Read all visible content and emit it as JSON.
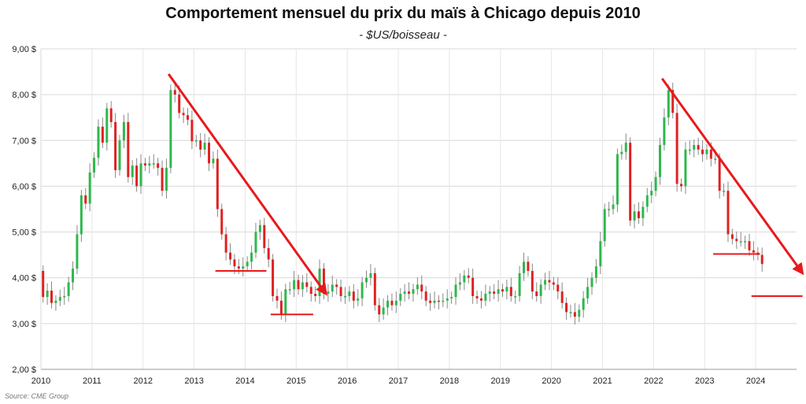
{
  "chart_data": {
    "type": "candlestick",
    "title": "Comportement mensuel du prix du maïs à Chicago depuis 2010",
    "subtitle": "- $US/boisseau -",
    "source": "Source: CME Group",
    "ylim": [
      2.0,
      9.0
    ],
    "y_ticks": [
      "2,00 $",
      "3,00 $",
      "4,00 $",
      "5,00 $",
      "6,00 $",
      "7,00 $",
      "8,00 $",
      "9,00 $"
    ],
    "x_ticks": [
      "2010",
      "2011",
      "2012",
      "2013",
      "2014",
      "2015",
      "2016",
      "2017",
      "2018",
      "2019",
      "2020",
      "2021",
      "2022",
      "2023",
      "2024"
    ],
    "grid": true,
    "colors": {
      "up": "#2db84c",
      "down": "#e02020",
      "annotation": "#e8191b",
      "wick": "#888888"
    },
    "monthly_close": [
      3.58,
      3.72,
      3.45,
      3.5,
      3.58,
      3.6,
      3.9,
      4.2,
      4.95,
      5.8,
      5.62,
      6.3,
      6.62,
      7.3,
      6.95,
      7.7,
      7.4,
      6.35,
      7.0,
      7.4,
      6.2,
      6.45,
      6.0,
      6.5,
      6.45,
      6.5,
      6.5,
      6.4,
      5.9,
      6.4,
      8.1,
      8.0,
      7.6,
      7.55,
      7.45,
      6.98,
      7.0,
      6.8,
      6.95,
      6.5,
      6.6,
      5.5,
      4.95,
      4.55,
      4.4,
      4.25,
      4.2,
      4.25,
      4.35,
      4.55,
      5.0,
      5.15,
      4.65,
      4.4,
      3.6,
      3.5,
      3.2,
      3.75,
      3.75,
      3.95,
      3.75,
      3.9,
      3.8,
      3.65,
      3.6,
      4.2,
      3.65,
      3.7,
      3.85,
      3.8,
      3.6,
      3.6,
      3.7,
      3.5,
      3.55,
      3.9,
      4.0,
      4.1,
      3.4,
      3.2,
      3.35,
      3.5,
      3.4,
      3.5,
      3.65,
      3.7,
      3.65,
      3.75,
      3.85,
      3.7,
      3.5,
      3.45,
      3.5,
      3.48,
      3.5,
      3.55,
      3.58,
      3.85,
      3.9,
      4.05,
      4.0,
      3.6,
      3.55,
      3.5,
      3.65,
      3.7,
      3.65,
      3.75,
      3.7,
      3.8,
      3.6,
      3.6,
      4.1,
      4.35,
      4.15,
      3.7,
      3.6,
      3.85,
      3.95,
      3.9,
      3.85,
      3.7,
      3.45,
      3.25,
      3.25,
      3.15,
      3.3,
      3.55,
      3.8,
      4.0,
      4.25,
      4.8,
      5.5,
      5.5,
      5.6,
      6.7,
      6.75,
      6.95,
      5.25,
      5.45,
      5.3,
      5.55,
      5.8,
      5.9,
      6.2,
      6.9,
      7.5,
      8.1,
      7.6,
      6.05,
      6.0,
      6.8,
      6.8,
      6.9,
      6.8,
      6.7,
      6.8,
      6.6,
      6.6,
      5.9,
      5.9,
      4.95,
      4.85,
      4.8,
      4.8,
      4.8,
      4.6,
      4.55,
      4.5,
      4.3
    ],
    "annotations": [
      {
        "type": "trend-arrow",
        "from": [
          "2012-07",
          8.45
        ],
        "to": [
          "2015-08",
          3.65
        ]
      },
      {
        "type": "support-line",
        "from": [
          "2013-06",
          4.15
        ],
        "to": [
          "2014-06",
          4.15
        ]
      },
      {
        "type": "support-line",
        "from": [
          "2014-07",
          3.2
        ],
        "to": [
          "2015-05",
          3.2
        ]
      },
      {
        "type": "trend-arrow",
        "from": [
          "2022-03",
          8.35
        ],
        "to": [
          "2024-12",
          4.1
        ]
      },
      {
        "type": "resistance-line",
        "from": [
          "2023-03",
          4.52
        ],
        "to": [
          "2024-02",
          4.52
        ]
      },
      {
        "type": "target-line",
        "from": [
          "2023-12",
          3.6
        ],
        "to": [
          "2024-12",
          3.6
        ]
      }
    ]
  }
}
